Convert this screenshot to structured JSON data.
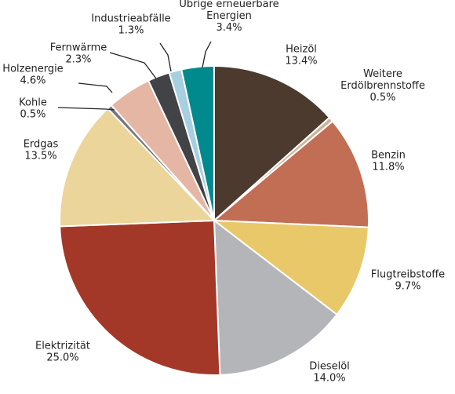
{
  "chart_data": {
    "type": "pie",
    "title": "",
    "unit": "%",
    "slices": [
      {
        "label": "Heizöl",
        "value": 13.4,
        "value_text": "13.4%",
        "color": "#4d3a2f"
      },
      {
        "label": "Weitere Erdölbrennstoffe",
        "label_lines": [
          "Weitere",
          "Erdölbrennstoffe"
        ],
        "value": 0.5,
        "value_text": "0.5%",
        "color": "#c9b59b"
      },
      {
        "label": "Benzin",
        "value": 11.8,
        "value_text": "11.8%",
        "color": "#c26e55"
      },
      {
        "label": "Flugtreibstoffe",
        "value": 9.7,
        "value_text": "9.7%",
        "color": "#e8c868"
      },
      {
        "label": "Dieselöl",
        "value": 14.0,
        "value_text": "14.0%",
        "color": "#b4b5b8"
      },
      {
        "label": "Elektrizität",
        "value": 25.0,
        "value_text": "25.0%",
        "color": "#a33828"
      },
      {
        "label": "Erdgas",
        "value": 13.5,
        "value_text": "13.5%",
        "color": "#ecd59a"
      },
      {
        "label": "Kohle",
        "value": 0.5,
        "value_text": "0.5%",
        "color": "#77777b"
      },
      {
        "label": "Holzenergie",
        "value": 4.6,
        "value_text": "4.6%",
        "color": "#e5b6a3"
      },
      {
        "label": "Fernwärme",
        "value": 2.3,
        "value_text": "2.3%",
        "color": "#424347"
      },
      {
        "label": "Industrieabfälle",
        "value": 1.3,
        "value_text": "1.3%",
        "color": "#a7cfe2"
      },
      {
        "label": "Übrige erneuerbare Energien",
        "label_lines": [
          "Übrige erneuerbare",
          "Energien"
        ],
        "value": 3.4,
        "value_text": "3.4%",
        "color": "#008a8e"
      }
    ]
  }
}
